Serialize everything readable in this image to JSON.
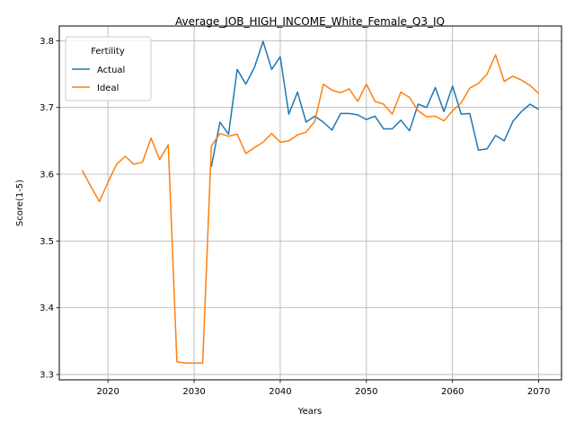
{
  "chart_data": {
    "type": "line",
    "title": "Average_JOB_HIGH_INCOME_White_Female_Q3_IQ",
    "xlabel": "Years",
    "ylabel": "Score(1-5)",
    "xlim": [
      2014.35,
      2072.65
    ],
    "ylim": [
      3.292,
      3.822
    ],
    "xticks": [
      2020,
      2030,
      2040,
      2050,
      2060,
      2070
    ],
    "yticks": [
      3.3,
      3.4,
      3.5,
      3.6,
      3.7,
      3.8
    ],
    "grid": true,
    "legend": {
      "title": "Fertility",
      "placement": "top-left"
    },
    "series": [
      {
        "name": "Actual",
        "color": "#1f77b4",
        "x": [
          2032,
          2033,
          2034,
          2035,
          2036,
          2037,
          2038,
          2039,
          2040,
          2041,
          2042,
          2043,
          2044,
          2045,
          2046,
          2047,
          2048,
          2049,
          2050,
          2051,
          2052,
          2053,
          2054,
          2055,
          2056,
          2057,
          2058,
          2059,
          2060,
          2061,
          2062,
          2063,
          2064,
          2065,
          2066,
          2067,
          2068,
          2069,
          2070
        ],
        "values": [
          3.611,
          3.678,
          3.66,
          3.757,
          3.735,
          3.76,
          3.799,
          3.757,
          3.776,
          3.69,
          3.723,
          3.678,
          3.687,
          3.678,
          3.666,
          3.691,
          3.691,
          3.689,
          3.682,
          3.687,
          3.668,
          3.668,
          3.681,
          3.665,
          3.705,
          3.7,
          3.73,
          3.694,
          3.732,
          3.69,
          3.691,
          3.636,
          3.638,
          3.658,
          3.65,
          3.679,
          3.694,
          3.705,
          3.697
        ]
      },
      {
        "name": "Ideal",
        "color": "#ff7f0e",
        "x": [
          2017,
          2018,
          2019,
          2020,
          2021,
          2022,
          2023,
          2024,
          2025,
          2026,
          2027,
          2028,
          2029,
          2030,
          2031,
          2032,
          2033,
          2034,
          2035,
          2036,
          2037,
          2038,
          2039,
          2040,
          2041,
          2042,
          2043,
          2044,
          2045,
          2046,
          2047,
          2048,
          2049,
          2050,
          2051,
          2052,
          2053,
          2054,
          2055,
          2056,
          2057,
          2058,
          2059,
          2060,
          2061,
          2062,
          2063,
          2064,
          2065,
          2066,
          2067,
          2068,
          2069,
          2070
        ],
        "values": [
          3.606,
          3.582,
          3.559,
          3.588,
          3.615,
          3.627,
          3.615,
          3.618,
          3.654,
          3.622,
          3.644,
          3.319,
          3.317,
          3.317,
          3.317,
          3.642,
          3.661,
          3.657,
          3.66,
          3.631,
          3.64,
          3.648,
          3.661,
          3.648,
          3.65,
          3.659,
          3.663,
          3.679,
          3.735,
          3.726,
          3.722,
          3.728,
          3.709,
          3.735,
          3.709,
          3.705,
          3.69,
          3.723,
          3.715,
          3.695,
          3.686,
          3.687,
          3.68,
          3.695,
          3.707,
          3.729,
          3.736,
          3.75,
          3.779,
          3.739,
          3.747,
          3.741,
          3.733,
          3.721
        ]
      }
    ]
  }
}
